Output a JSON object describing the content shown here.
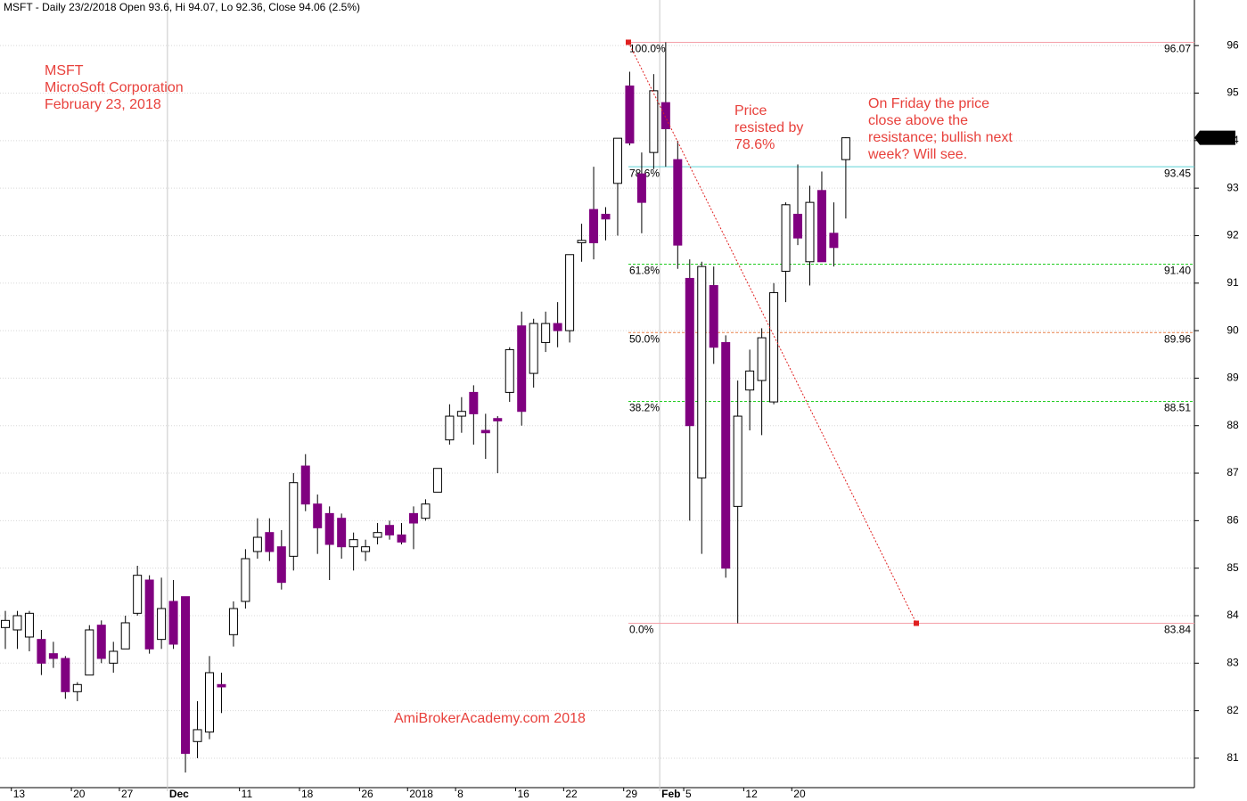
{
  "chart_data": {
    "type": "candlestick",
    "title": "MSFT - Daily 23/2/2018 Open 93.6, Hi 94.07, Lo 92.36, Close 94.06 (2.5%)",
    "annotations": {
      "left": [
        "MSFT",
        "MicroSoft Corporation",
        "February 23, 2018"
      ],
      "middle": [
        "Price",
        "resisted by",
        "78.6%"
      ],
      "right": [
        "On Friday the price",
        "close above the",
        "resistance; bullish next",
        "week? Will see."
      ],
      "footer": "AmiBrokerAcademy.com  2018"
    },
    "categories": [
      null,
      "13",
      null,
      null,
      null,
      null,
      "20",
      null,
      null,
      null,
      "27",
      null,
      null,
      null,
      "Dec",
      null,
      null,
      null,
      null,
      null,
      "11",
      null,
      null,
      null,
      null,
      "18",
      null,
      null,
      null,
      null,
      "26",
      null,
      null,
      null,
      "2018",
      null,
      null,
      null,
      "8",
      null,
      null,
      null,
      null,
      "16",
      null,
      null,
      null,
      "22",
      null,
      null,
      null,
      null,
      "29",
      null,
      null,
      "Feb",
      null,
      "5",
      null,
      null,
      null,
      null,
      "12",
      null,
      null,
      null,
      "20",
      null,
      null,
      null,
      null
    ],
    "open": [
      83.75,
      83.7,
      83.55,
      83.5,
      83.2,
      83.1,
      82.4,
      82.75,
      83.8,
      83.0,
      83.3,
      84.05,
      84.75,
      83.5,
      84.3,
      84.4,
      81.35,
      81.55,
      82.55,
      83.6,
      84.3,
      85.35,
      85.75,
      85.45,
      85.25,
      87.15,
      86.35,
      86.15,
      86.05,
      85.45,
      85.35,
      85.65,
      85.9,
      85.7,
      86.15,
      86.05,
      86.6,
      87.7,
      88.2,
      88.7,
      87.9,
      88.15,
      88.7,
      90.1,
      89.1,
      89.75,
      90.15,
      90.0,
      91.85,
      92.55,
      92.45,
      93.1,
      95.15,
      93.3,
      93.75,
      94.8,
      93.6,
      91.1,
      86.9,
      90.95,
      89.75,
      86.3,
      88.75,
      88.95,
      88.5,
      91.25,
      92.45,
      91.45,
      92.95,
      92.05,
      93.6
    ],
    "high": [
      84.1,
      84.1,
      84.1,
      83.7,
      83.45,
      83.15,
      82.6,
      83.8,
      83.9,
      83.45,
      84.0,
      85.05,
      84.85,
      84.8,
      84.75,
      84.4,
      82.2,
      83.15,
      82.8,
      84.3,
      85.4,
      86.05,
      86.05,
      85.8,
      87.0,
      87.4,
      86.55,
      86.3,
      86.15,
      85.75,
      85.6,
      85.95,
      86.0,
      85.95,
      86.3,
      86.45,
      87.1,
      88.45,
      88.6,
      88.85,
      88.25,
      88.2,
      89.65,
      90.4,
      90.25,
      90.4,
      90.6,
      91.6,
      92.25,
      93.45,
      92.6,
      94.05,
      95.45,
      93.75,
      95.4,
      96.07,
      94.0,
      91.5,
      91.45,
      91.35,
      89.9,
      88.95,
      89.6,
      90.05,
      91.0,
      92.7,
      93.5,
      93.05,
      93.35,
      92.7,
      94.07
    ],
    "low": [
      83.3,
      83.3,
      83.25,
      82.75,
      82.9,
      82.25,
      82.2,
      82.75,
      83.0,
      82.8,
      83.3,
      84.0,
      83.2,
      83.3,
      83.3,
      80.7,
      81.0,
      81.4,
      81.95,
      83.35,
      84.15,
      85.2,
      85.15,
      84.55,
      84.95,
      86.2,
      85.3,
      84.75,
      85.2,
      84.95,
      85.15,
      85.5,
      85.6,
      85.5,
      85.4,
      86.0,
      86.6,
      87.6,
      87.85,
      87.6,
      87.3,
      87.0,
      88.5,
      88.0,
      88.8,
      89.55,
      89.65,
      89.75,
      91.45,
      91.5,
      91.9,
      92.0,
      93.9,
      92.05,
      93.4,
      93.45,
      91.3,
      86.0,
      85.3,
      89.3,
      84.8,
      83.84,
      87.9,
      87.8,
      88.45,
      90.6,
      91.8,
      90.95,
      91.45,
      91.35,
      92.36
    ],
    "close": [
      83.9,
      84.0,
      84.05,
      83.0,
      83.1,
      82.4,
      82.55,
      83.7,
      83.1,
      83.25,
      83.85,
      84.85,
      83.3,
      84.15,
      83.4,
      81.1,
      81.6,
      82.8,
      82.5,
      84.15,
      85.2,
      85.65,
      85.35,
      84.7,
      86.8,
      86.35,
      85.85,
      85.5,
      85.45,
      85.6,
      85.45,
      85.75,
      85.7,
      85.55,
      85.95,
      86.35,
      87.1,
      88.2,
      88.3,
      88.25,
      87.85,
      88.1,
      89.6,
      88.3,
      90.15,
      90.15,
      90.0,
      91.6,
      91.9,
      91.85,
      92.35,
      94.05,
      93.95,
      92.7,
      95.05,
      94.25,
      91.8,
      88.0,
      91.35,
      89.65,
      85.0,
      88.2,
      89.15,
      89.85,
      90.8,
      92.65,
      91.95,
      92.7,
      91.45,
      91.75,
      94.06
    ],
    "up_color": "#ffffff",
    "down_color": "#800080",
    "fib_levels": [
      {
        "name": "100.0%",
        "value": 96.07,
        "color": "#f4a0a8"
      },
      {
        "name": "78.6%",
        "value": 93.45,
        "color": "#5fd3d8"
      },
      {
        "name": "61.8%",
        "value": 91.4,
        "value_label": "91.40",
        "color": "#22cc22"
      },
      {
        "name": "50.0%",
        "value": 89.96,
        "color": "#e8804a"
      },
      {
        "name": "38.2%",
        "value": 88.51,
        "color": "#22cc22"
      },
      {
        "name": "0.0%",
        "value": 83.84,
        "color": "#f4a0a8"
      }
    ],
    "trend_color": "#e02020",
    "ylim": [
      80.38,
      96.96
    ],
    "yticks": [
      81,
      82,
      83,
      84,
      85,
      86,
      87,
      88,
      89,
      90,
      91,
      92,
      93,
      94,
      95,
      96
    ],
    "grid": true
  }
}
